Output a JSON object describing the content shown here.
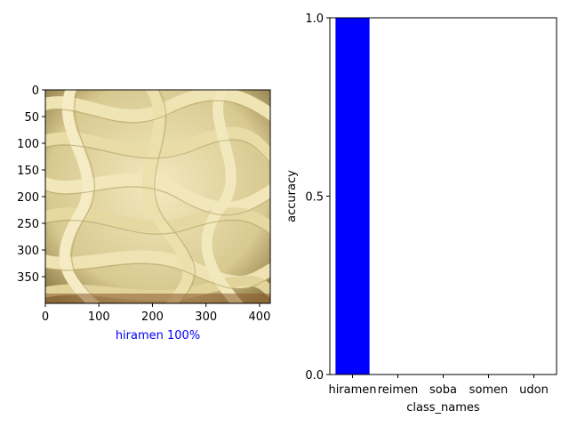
{
  "chart_data": [
    {
      "type": "image",
      "xlim": [
        0,
        420
      ],
      "ylim": [
        400,
        0
      ],
      "xticks": [
        "0",
        "100",
        "200",
        "300",
        "400"
      ],
      "yticks": [
        "0",
        "50",
        "100",
        "150",
        "200",
        "250",
        "300",
        "350"
      ],
      "xlabel": "hiramen 100%",
      "xlabel_color": "#0000ff",
      "image_subject": "noodle-photo"
    },
    {
      "type": "bar",
      "categories": [
        "hiramen",
        "reimen",
        "soba",
        "somen",
        "udon"
      ],
      "values": [
        1.0,
        0.0,
        0.0,
        0.0,
        0.0
      ],
      "bar_color": "#0000ff",
      "xlabel": "class_names",
      "ylabel": "accuracy",
      "ylim": [
        0,
        1
      ],
      "yticks": [
        "0.0",
        "0.5",
        "1.0"
      ],
      "grid": false
    }
  ]
}
